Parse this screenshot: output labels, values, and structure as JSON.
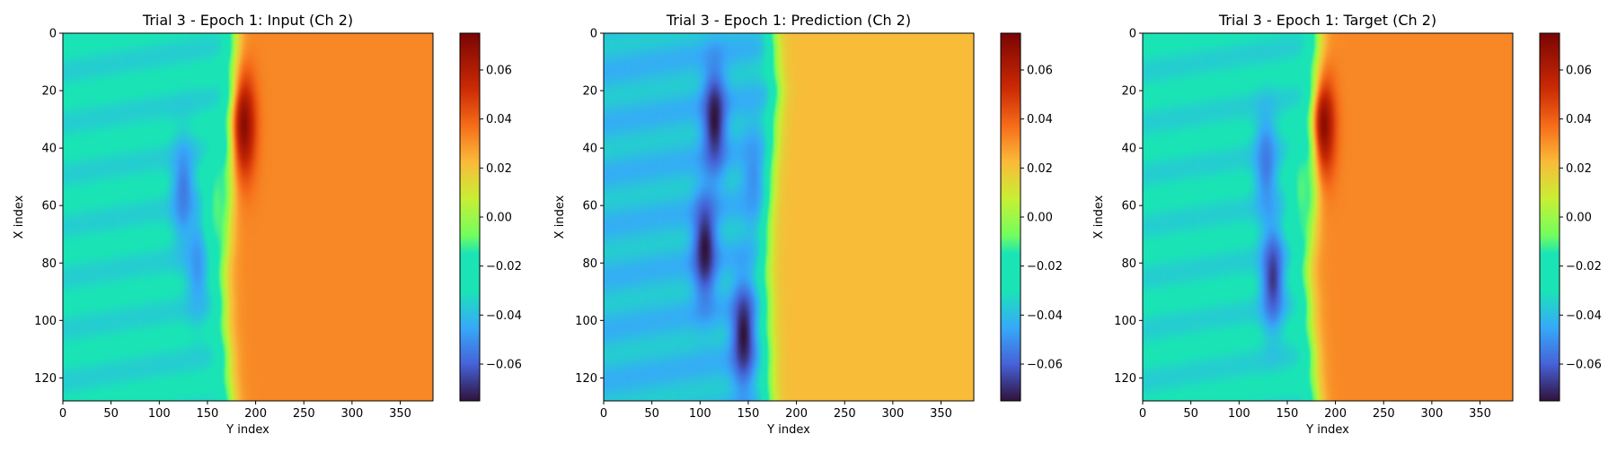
{
  "chart_data": [
    {
      "type": "heatmap",
      "title": "Trial 3 - Epoch 1: Input (Ch 2)",
      "xlabel": "Y index",
      "ylabel": "X index",
      "xlim": [
        0,
        384
      ],
      "ylim": [
        128,
        0
      ],
      "x_ticks": [
        0,
        50,
        100,
        150,
        200,
        250,
        300,
        350
      ],
      "y_ticks": [
        0,
        20,
        40,
        60,
        80,
        100,
        120
      ],
      "colorbar": {
        "range": [
          -0.075,
          0.075
        ],
        "ticks": [
          "0.06",
          "0.04",
          "0.02",
          "0.00",
          "−0.02",
          "−0.04",
          "−0.06"
        ],
        "tick_values": [
          0.06,
          0.04,
          0.02,
          0.0,
          -0.02,
          -0.04,
          -0.06
        ],
        "colormap": "turbo"
      },
      "grid": false,
      "field": {
        "front_x": [
          [
            0,
            178
          ],
          [
            20,
            180
          ],
          [
            40,
            176
          ],
          [
            60,
            170
          ],
          [
            80,
            166
          ],
          [
            100,
            168
          ],
          [
            128,
            174
          ]
        ],
        "left_value": -0.032,
        "right_value": 0.032,
        "features": [
          {
            "x": 125,
            "y": 55,
            "value": -0.055
          },
          {
            "x": 140,
            "y": 80,
            "value": -0.05
          },
          {
            "x": 188,
            "y": 32,
            "value": 0.07
          },
          {
            "x": 160,
            "y": 60,
            "value": -0.01
          }
        ]
      }
    },
    {
      "type": "heatmap",
      "title": "Trial 3 - Epoch 1: Prediction (Ch 2)",
      "xlabel": "Y index",
      "ylabel": "X index",
      "xlim": [
        0,
        384
      ],
      "ylim": [
        128,
        0
      ],
      "x_ticks": [
        0,
        50,
        100,
        150,
        200,
        250,
        300,
        350
      ],
      "y_ticks": [
        0,
        20,
        40,
        60,
        80,
        100,
        120
      ],
      "colorbar": {
        "range": [
          -0.075,
          0.075
        ],
        "ticks": [
          "0.06",
          "0.04",
          "0.02",
          "0.00",
          "−0.02",
          "−0.04",
          "−0.06"
        ],
        "tick_values": [
          0.06,
          0.04,
          0.02,
          0.0,
          -0.02,
          -0.04,
          -0.06
        ],
        "colormap": "turbo"
      },
      "grid": false,
      "field": {
        "front_x": [
          [
            0,
            175
          ],
          [
            20,
            180
          ],
          [
            40,
            175
          ],
          [
            60,
            170
          ],
          [
            80,
            168
          ],
          [
            100,
            170
          ],
          [
            128,
            172
          ]
        ],
        "left_value": -0.04,
        "right_value": 0.022,
        "features": [
          {
            "x": 115,
            "y": 30,
            "value": -0.075
          },
          {
            "x": 105,
            "y": 75,
            "value": -0.075
          },
          {
            "x": 145,
            "y": 105,
            "value": -0.075
          },
          {
            "x": 155,
            "y": 50,
            "value": -0.05
          }
        ]
      }
    },
    {
      "type": "heatmap",
      "title": "Trial 3 - Epoch 1: Target (Ch 2)",
      "xlabel": "Y index",
      "ylabel": "X index",
      "xlim": [
        0,
        384
      ],
      "ylim": [
        128,
        0
      ],
      "x_ticks": [
        0,
        50,
        100,
        150,
        200,
        250,
        300,
        350
      ],
      "y_ticks": [
        0,
        20,
        40,
        60,
        80,
        100,
        120
      ],
      "colorbar": {
        "range": [
          -0.075,
          0.075
        ],
        "ticks": [
          "0.06",
          "0.04",
          "0.02",
          "0.00",
          "−0.02",
          "−0.04",
          "−0.06"
        ],
        "tick_values": [
          0.06,
          0.04,
          0.02,
          0.0,
          -0.02,
          -0.04,
          -0.06
        ],
        "colormap": "turbo"
      },
      "grid": false,
      "field": {
        "front_x": [
          [
            0,
            182
          ],
          [
            20,
            185
          ],
          [
            40,
            182
          ],
          [
            60,
            176
          ],
          [
            80,
            170
          ],
          [
            100,
            174
          ],
          [
            128,
            180
          ]
        ],
        "left_value": -0.032,
        "right_value": 0.032,
        "features": [
          {
            "x": 128,
            "y": 45,
            "value": -0.055
          },
          {
            "x": 135,
            "y": 85,
            "value": -0.068
          },
          {
            "x": 188,
            "y": 32,
            "value": 0.07
          },
          {
            "x": 165,
            "y": 55,
            "value": -0.01
          }
        ]
      }
    }
  ]
}
